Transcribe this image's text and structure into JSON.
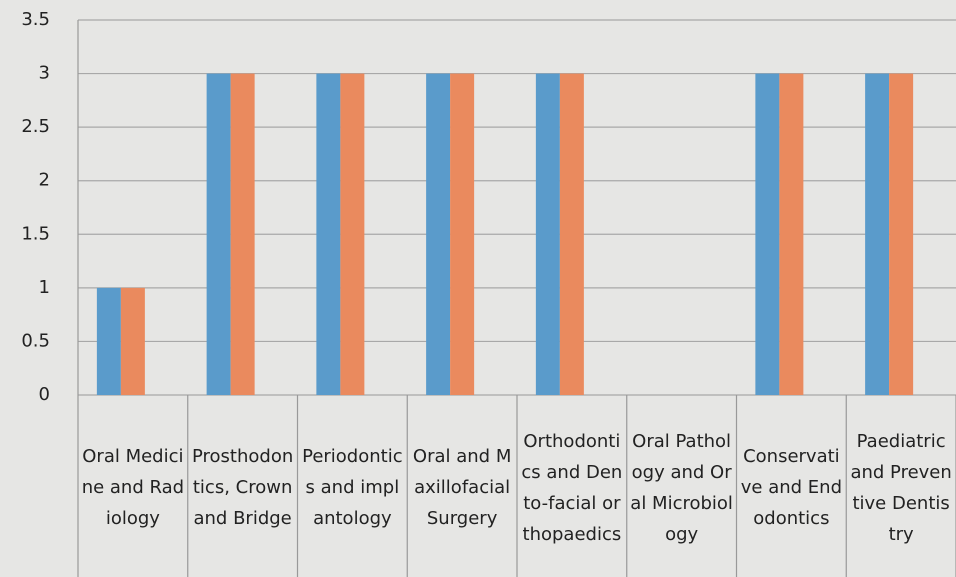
{
  "chart_data": {
    "type": "bar",
    "categories": [
      "Oral Medicine and Radiology",
      "Prosthodontics, Crown and Bridge",
      "Periodontics and implantology",
      "Oral and Maxillofacial Surgery",
      "Orthodontics and Dento-facial orthopaedics",
      "Oral Pathology and Oral Microbiology",
      "Conservative and Endodontics",
      "Paediatric and Preventive Dentistry"
    ],
    "series": [
      {
        "color": "#5a9bcb",
        "values": [
          1,
          3,
          3,
          3,
          3,
          0,
          3,
          3
        ]
      },
      {
        "color": "#ea8a5e",
        "values": [
          1,
          3,
          3,
          3,
          3,
          0,
          3,
          3
        ]
      }
    ],
    "ylim": [
      0,
      3.5
    ],
    "yticks": [
      0,
      0.5,
      1,
      1.5,
      2,
      2.5,
      3,
      3.5
    ],
    "grid": true
  }
}
